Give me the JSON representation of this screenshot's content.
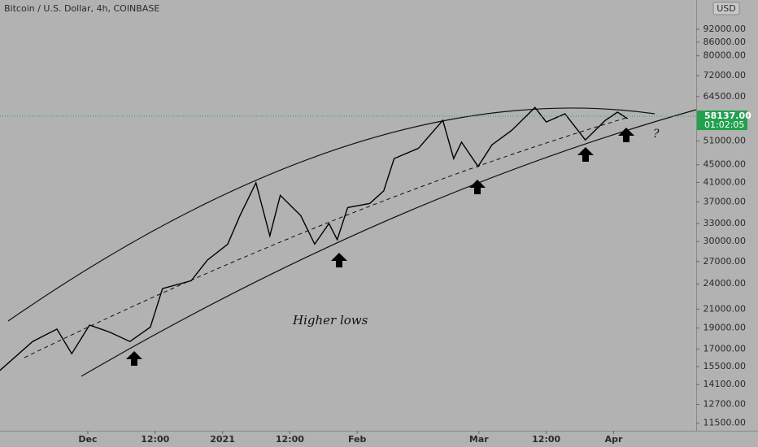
{
  "chart_data": {
    "type": "line",
    "title": "Bitcoin / U.S. Dollar, 4h, COINBASE",
    "currency": "USD",
    "log_scale": true,
    "color": "#000000",
    "x": [
      -20.2,
      -12.7,
      -7.1,
      -3.7,
      0.4,
      5,
      9.7,
      14.4,
      17.2,
      23.8,
      27.5,
      32.2,
      35,
      38.7,
      41.9,
      44.3,
      49,
      52.2,
      55.5,
      57.4,
      59.8,
      64.9,
      68.1,
      70.5,
      76.1,
      81.7,
      84.2,
      86,
      89.8,
      93,
      97.6,
      102.9,
      105.5,
      109.8,
      114.5,
      119.1,
      121.9,
      124.2
    ],
    "values": [
      15200,
      17700,
      18900,
      16600,
      19300,
      18600,
      17700,
      19100,
      23400,
      24400,
      27200,
      29600,
      34400,
      40900,
      30900,
      38300,
      34400,
      29600,
      33000,
      30300,
      35900,
      36700,
      39200,
      46500,
      49100,
      56900,
      46500,
      50700,
      44600,
      50000,
      54000,
      60900,
      56400,
      58900,
      51300,
      56900,
      59400,
      57400
    ],
    "xlim": [
      -20.2,
      140
    ],
    "ylim": [
      11050,
      107400
    ],
    "xticks": [
      {
        "value": 0,
        "label": "Dec"
      },
      {
        "value": 15.5,
        "label": "12:00"
      },
      {
        "value": 31,
        "label": "2021"
      },
      {
        "value": 46.5,
        "label": "12:00"
      },
      {
        "value": 62,
        "label": "Feb"
      },
      {
        "value": 90,
        "label": "Mar"
      },
      {
        "value": 105.5,
        "label": "12:00"
      },
      {
        "value": 121,
        "label": "Apr"
      }
    ],
    "yticks": [
      {
        "value": 92000,
        "label": "92000.00"
      },
      {
        "value": 86000,
        "label": "86000.00"
      },
      {
        "value": 80000,
        "label": "80000.00"
      },
      {
        "value": 72000,
        "label": "72000.00"
      },
      {
        "value": 64500,
        "label": "64500.00"
      },
      {
        "value": 51000,
        "label": "51000.00"
      },
      {
        "value": 45000,
        "label": "45000.00"
      },
      {
        "value": 41000,
        "label": "41000.00"
      },
      {
        "value": 37000,
        "label": "37000.00"
      },
      {
        "value": 33000,
        "label": "33000.00"
      },
      {
        "value": 30000,
        "label": "30000.00"
      },
      {
        "value": 27000,
        "label": "27000.00"
      },
      {
        "value": 24000,
        "label": "24000.00"
      },
      {
        "value": 21000,
        "label": "21000.00"
      },
      {
        "value": 19000,
        "label": "19000.00"
      },
      {
        "value": 17000,
        "label": "17000.00"
      },
      {
        "value": 15500,
        "label": "15500.00"
      },
      {
        "value": 14100,
        "label": "14100.00"
      },
      {
        "value": 12700,
        "label": "12700.00"
      },
      {
        "value": 11500,
        "label": "11500.00"
      }
    ],
    "last_value": 58137,
    "last_value_label": "58137.00",
    "countdown": "01:02:05",
    "annotations": [
      "Higher lows",
      "?"
    ]
  }
}
